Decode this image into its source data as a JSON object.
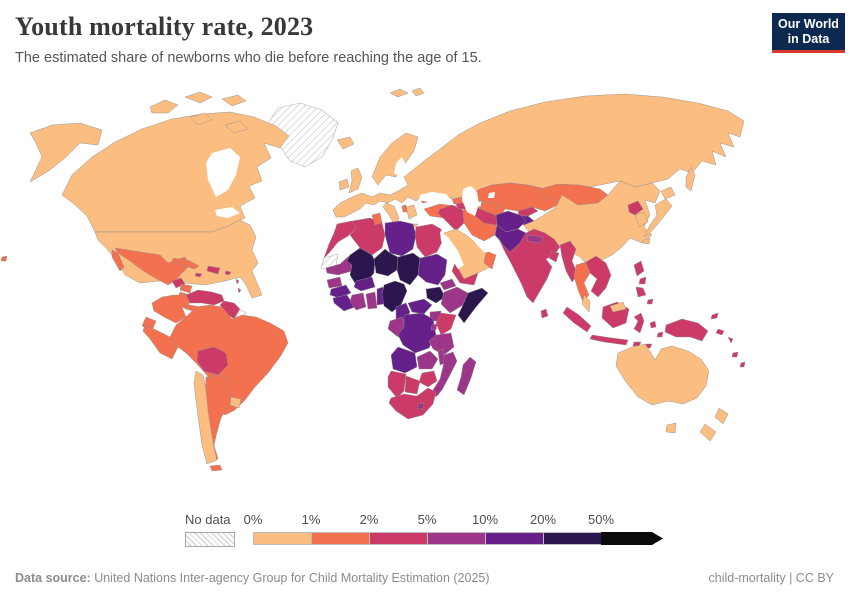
{
  "header": {
    "title": "Youth mortality rate, 2023",
    "subtitle": "The estimated share of newborns who die before reaching the age of 15."
  },
  "logo": {
    "line1": "Our World",
    "line2": "in Data",
    "bg": "#0c2950",
    "accent": "#d93a2b"
  },
  "legend": {
    "no_data_label": "No data",
    "ticks": [
      "0%",
      "1%",
      "2%",
      "5%",
      "10%",
      "20%",
      "50%"
    ]
  },
  "footer": {
    "source_label": "Data source:",
    "source_text": " United Nations Inter-agency Group for Child Mortality Estimation (2025)",
    "license_text": "child-mortality | CC BY"
  },
  "chart_data": {
    "type": "choropleth",
    "title": "Youth mortality rate, 2023",
    "unit": "%",
    "legend_bins": [
      {
        "label": "0%-1%",
        "color": "#fbbd80"
      },
      {
        "label": "1%-2%",
        "color": "#f4714f"
      },
      {
        "label": "2%-5%",
        "color": "#cc3b67"
      },
      {
        "label": "5%-10%",
        "color": "#9d3689"
      },
      {
        "label": "10%-20%",
        "color": "#66208a"
      },
      {
        "label": "20%-50%",
        "color": "#2b164e"
      },
      {
        "label": "50%+",
        "color": "#0b0b0b"
      }
    ],
    "no_data_label": "No data",
    "regions": {
      "canada": 0,
      "usa": 0,
      "alaska": 0,
      "arctic-islands-a": 0,
      "arctic-islands-b": 0,
      "arctic-islands-c": 0,
      "arctic-islands-d": 0,
      "arctic-islands-e": 0,
      "greenland": "nodata",
      "western-sahara": "nodata",
      "french-guiana": "nodata",
      "mexico": 1,
      "baja-california": 1,
      "guatemala": 2,
      "honduras": 1,
      "nicaragua": 1,
      "costa-rica-panama": 1,
      "panama": 2,
      "cuba": 1,
      "jamaica": 2,
      "hispaniola": 2,
      "puerto-rico": 2,
      "antilles-1": 2,
      "antilles-2": 2,
      "hawaii": 1,
      "colombia": 1,
      "venezuela": 2,
      "guyanas": 2,
      "ecuador": 1,
      "peru": 1,
      "brazil": 1,
      "bolivia": 2,
      "chile": 0,
      "argentina": 1,
      "uruguay": 0,
      "tierra-del-fuego": 1,
      "iceland": 0,
      "ireland": 0,
      "uk": 0,
      "scandinavia": 0,
      "europe-russia": 0,
      "italy": 0,
      "sicily": 0,
      "greece": 0,
      "crete": 0,
      "albania": 1,
      "moldova": 1,
      "svalbard-1": 0,
      "svalbard-2": 0,
      "turkey": 1,
      "georgia": 1,
      "azerbaijan": 2,
      "iraq-syria": 2,
      "iran": 1,
      "saudi-arabia": 0,
      "yemen": 2,
      "oman": 1,
      "kazakhstan": 1,
      "uzbekistan": 1,
      "turkmenistan": 2,
      "kyrgyzstan": 2,
      "tajikistan": 4,
      "mongolia": 1,
      "china": 0,
      "north-korea": 2,
      "south-korea": 0,
      "japan-hokkaido": 0,
      "japan-honshu": 0,
      "japan-kyushu": 0,
      "sakhalin": 0,
      "afghanistan": 4,
      "pakistan": 4,
      "india": 2,
      "nepal": 3,
      "bangladesh": 2,
      "sri-lanka": 2,
      "myanmar": 2,
      "thailand": 1,
      "indochina": 2,
      "malay-peninsula": 0,
      "sumatra": 2,
      "borneo": 2,
      "malaysia-borneo": 0,
      "java": 2,
      "lesser-sunda-1": 2,
      "lesser-sunda-2": 2,
      "sulawesi": 2,
      "molucca-1": 2,
      "molucca-2": 2,
      "philippines-luzon": 2,
      "philippines-2": 2,
      "philippines-3": 2,
      "philippines-4": 2,
      "new-guinea": 2,
      "bismarck": 2,
      "solomon-1": 2,
      "solomon-2": 2,
      "vanuatu": 2,
      "fiji": 2,
      "australia": 0,
      "tasmania": 0,
      "new-zealand-north": 0,
      "new-zealand-south": 0,
      "morocco": 2,
      "algeria": 2,
      "tunisia": 1,
      "libya": 4,
      "egypt": 2,
      "mauritania": 3,
      "mali": 5,
      "niger": 5,
      "chad": 5,
      "sudan": 4,
      "eritrea": 3,
      "senegal": 3,
      "guinea": 4,
      "sierra-leone-liberia": 4,
      "cote-divoire": 3,
      "ghana": 3,
      "burkina-faso": 4,
      "togo-benin": 4,
      "nigeria": 5,
      "cameroon": 4,
      "central-african-republic": 4,
      "south-sudan": 5,
      "ethiopia": 3,
      "somalia": 5,
      "kenya": 2,
      "uganda": 3,
      "gabon-congo": 3,
      "drc": 4,
      "rwanda-burundi": 3,
      "tanzania": 3,
      "angola": 4,
      "zambia": 3,
      "malawi": 3,
      "mozambique": 3,
      "zimbabwe": 2,
      "namibia": 2,
      "botswana": 2,
      "south-africa": 2,
      "lesotho": 3,
      "madagascar": 3
    }
  }
}
